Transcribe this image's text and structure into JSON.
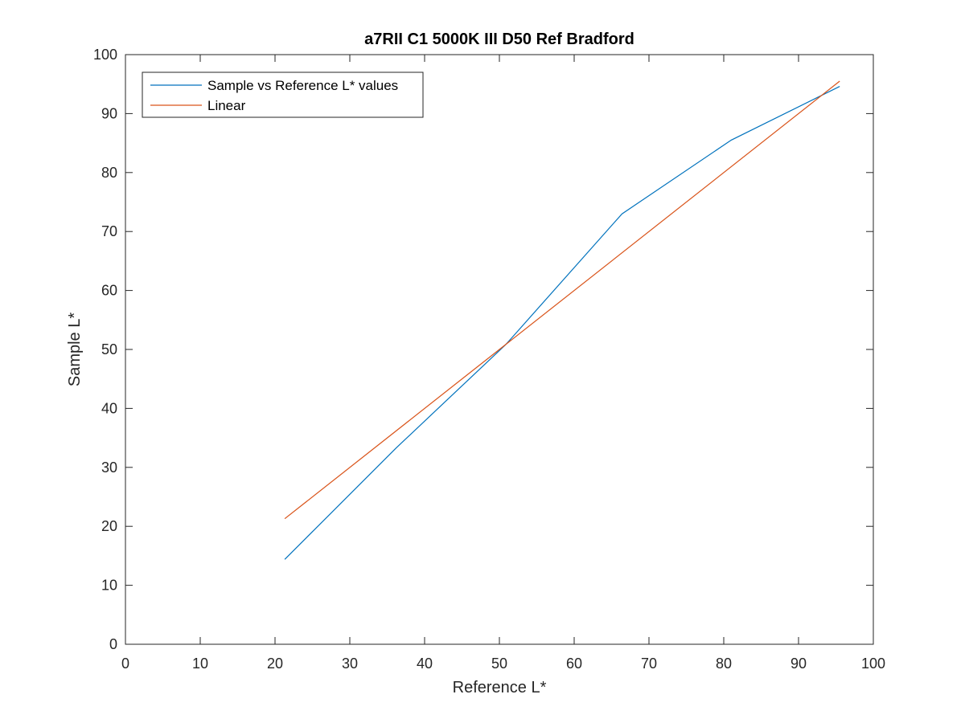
{
  "chart_data": {
    "type": "line",
    "title": "a7RII C1 5000K III D50 Ref Bradford",
    "xlabel": "Reference L*",
    "ylabel": "Sample L*",
    "xlim": [
      0,
      100
    ],
    "ylim": [
      0,
      100
    ],
    "xticks": [
      0,
      10,
      20,
      30,
      40,
      50,
      60,
      70,
      80,
      90,
      100
    ],
    "yticks": [
      0,
      10,
      20,
      30,
      40,
      50,
      60,
      70,
      80,
      90,
      100
    ],
    "grid": false,
    "legend_position": "top-left",
    "series": [
      {
        "name": "Sample vs Reference L* values",
        "color": "#0072BD",
        "x": [
          21.3,
          36.2,
          50.9,
          66.4,
          81.0,
          95.5
        ],
        "y": [
          14.4,
          33.3,
          50.9,
          73.0,
          85.5,
          94.6
        ]
      },
      {
        "name": "Linear",
        "color": "#D95319",
        "x": [
          21.3,
          95.5
        ],
        "y": [
          21.3,
          95.5
        ]
      }
    ]
  }
}
